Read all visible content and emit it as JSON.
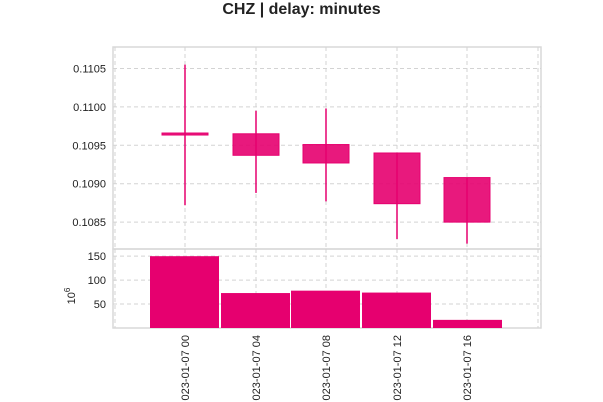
{
  "chart_data": {
    "type": "candlestick",
    "title": "CHZ | delay: minutes",
    "up_color": "#e6006f",
    "down_color": "#e6006f",
    "bar_color": "#e6006f",
    "x_tick_labels": [
      "023-01-07 00",
      "023-01-07 04",
      "023-01-07 08",
      "023-01-07 12",
      "023-01-07 16"
    ],
    "price": {
      "ylim": [
        0.10815,
        0.11078
      ],
      "yticks": [
        "0.1085",
        "0.1090",
        "0.1095",
        "0.1100",
        "0.1105"
      ],
      "ytick_values": [
        0.1085,
        0.109,
        0.1095,
        0.11,
        0.1105
      ],
      "candles": [
        {
          "open": 0.10966,
          "high": 0.11055,
          "low": 0.10872,
          "close": 0.10966
        },
        {
          "open": 0.10965,
          "high": 0.10995,
          "low": 0.10888,
          "close": 0.10937
        },
        {
          "open": 0.10951,
          "high": 0.10998,
          "low": 0.10877,
          "close": 0.10927
        },
        {
          "open": 0.1094,
          "high": 0.1094,
          "low": 0.10828,
          "close": 0.10874
        },
        {
          "open": 0.10908,
          "high": 0.10908,
          "low": 0.10822,
          "close": 0.1085
        }
      ]
    },
    "volume": {
      "ylabel": "10",
      "ylabel_exponent": "6",
      "ylim": [
        0,
        165
      ],
      "yticks": [
        "50",
        "100",
        "150"
      ],
      "ytick_values": [
        50,
        100,
        150
      ],
      "values": [
        150,
        73,
        78,
        74,
        17
      ]
    },
    "grid": true
  }
}
